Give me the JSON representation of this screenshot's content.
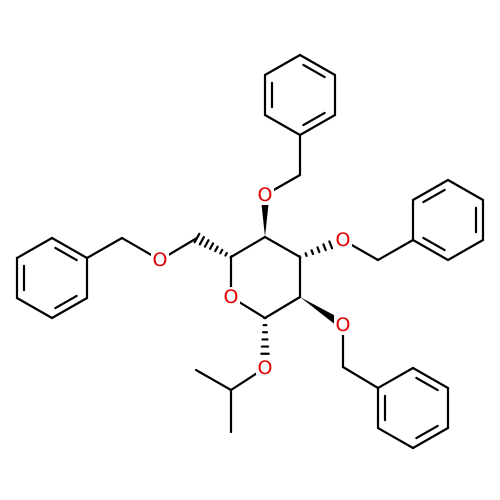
{
  "atoms": [
    {
      "label": "O"
    },
    {
      "label": "O"
    },
    {
      "label": "O"
    },
    {
      "label": "O"
    },
    {
      "label": "O"
    },
    {
      "label": "O"
    }
  ]
}
